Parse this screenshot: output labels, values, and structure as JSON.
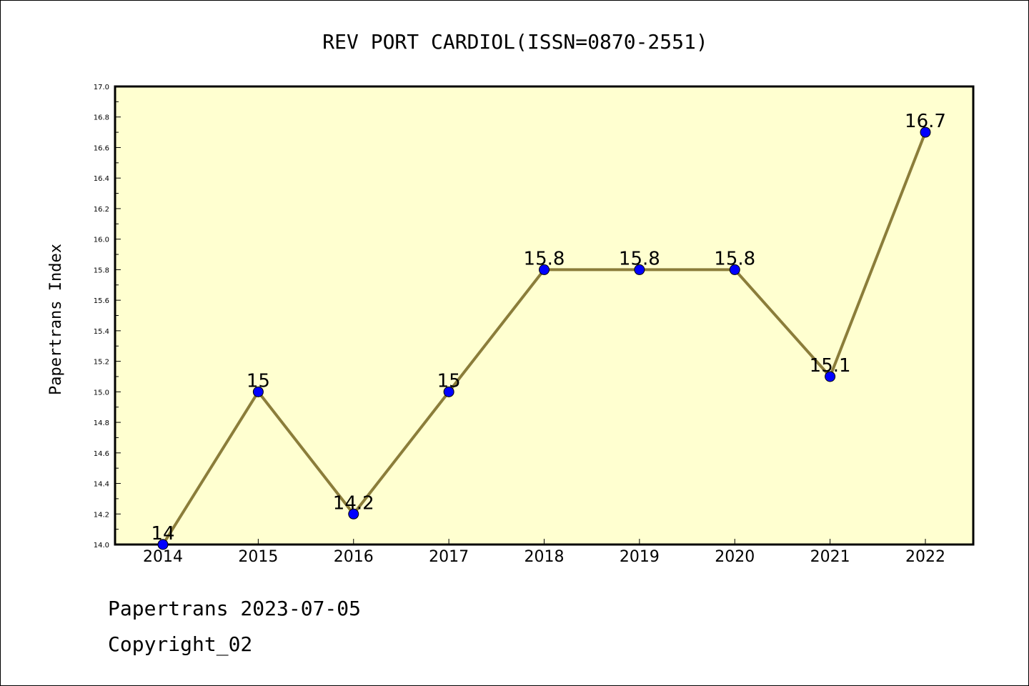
{
  "chart_data": {
    "type": "line",
    "title": "REV PORT CARDIOL(ISSN=0870-2551)",
    "xlabel": "",
    "ylabel": "Papertrans Index",
    "categories": [
      "2014",
      "2015",
      "2016",
      "2017",
      "2018",
      "2019",
      "2020",
      "2021",
      "2022"
    ],
    "values": [
      14,
      15,
      14.2,
      15,
      15.8,
      15.8,
      15.8,
      15.1,
      16.7
    ],
    "data_labels": [
      "14",
      "15",
      "14.2",
      "15",
      "15.8",
      "15.8",
      "15.8",
      "15.1",
      "16.7"
    ],
    "ylim": [
      14.0,
      17.0
    ],
    "yticks": [
      14.0,
      14.2,
      14.4,
      14.6,
      14.8,
      15.0,
      15.2,
      15.4,
      15.6,
      15.8,
      16.0,
      16.2,
      16.4,
      16.6,
      16.8,
      17.0
    ],
    "grid": false,
    "colors": {
      "line": "#8B7D3A",
      "marker": "#0000FF",
      "plot_background": "#FFFFD0"
    }
  },
  "footer": {
    "date_line": "Papertrans 2023-07-05",
    "copyright": "Copyright_02"
  }
}
